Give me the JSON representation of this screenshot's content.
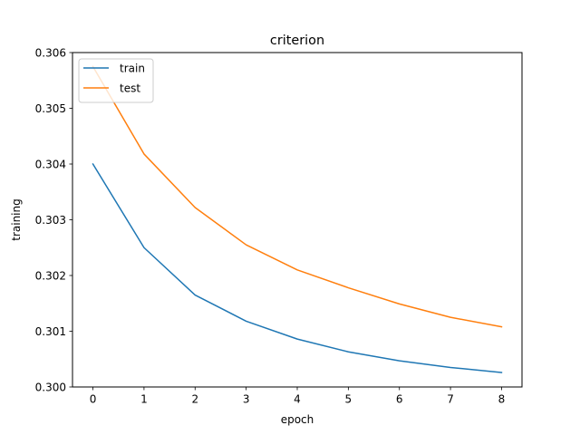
{
  "chart_data": {
    "type": "line",
    "title": "criterion",
    "xlabel": "epoch",
    "ylabel": "training",
    "x": [
      0,
      1,
      2,
      3,
      4,
      5,
      6,
      7,
      8
    ],
    "xlim": [
      -0.4,
      8.4
    ],
    "ylim": [
      0.3,
      0.306
    ],
    "xticks": [
      0,
      1,
      2,
      3,
      4,
      5,
      6,
      7,
      8
    ],
    "xtick_labels": [
      "0",
      "1",
      "2",
      "3",
      "4",
      "5",
      "6",
      "7",
      "8"
    ],
    "yticks": [
      0.3,
      0.301,
      0.302,
      0.303,
      0.304,
      0.305,
      0.306
    ],
    "ytick_labels": [
      "0.300",
      "0.301",
      "0.302",
      "0.303",
      "0.304",
      "0.305",
      "0.306"
    ],
    "grid": false,
    "legend_position": "top-left",
    "series": [
      {
        "name": "train",
        "color": "#1f77b4",
        "values": [
          0.304,
          0.3025,
          0.30165,
          0.30118,
          0.30086,
          0.30063,
          0.30047,
          0.30035,
          0.30026
        ]
      },
      {
        "name": "test",
        "color": "#ff7f0e",
        "values": [
          0.30575,
          0.30418,
          0.30322,
          0.30255,
          0.3021,
          0.30178,
          0.30149,
          0.30125,
          0.30108
        ]
      }
    ]
  }
}
